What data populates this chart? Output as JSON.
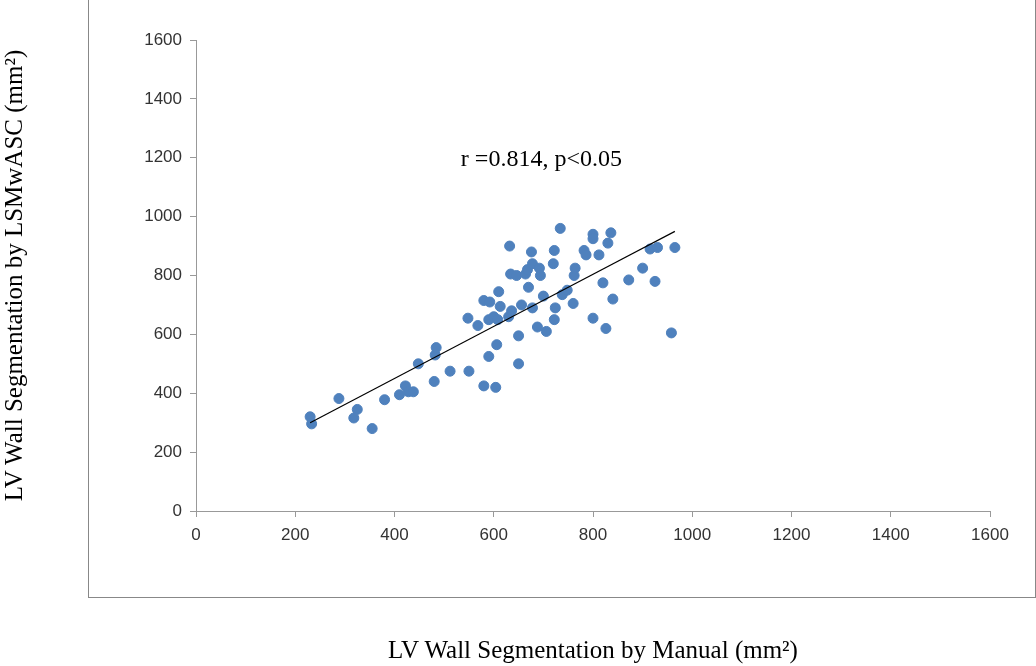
{
  "chart_data": {
    "type": "scatter",
    "xlabel": "LV Wall Segmentation by Manual (mm²)",
    "ylabel": "LV Wall Segmentation by LSMwASC (mm²)",
    "annotations": [
      "r =0.814, p<0.05"
    ],
    "xlim": [
      0,
      1600
    ],
    "xticks": [
      0,
      200,
      400,
      600,
      800,
      1000,
      1200,
      1400,
      1600
    ],
    "ylim": [
      0,
      1600
    ],
    "yticks": [
      0,
      200,
      400,
      600,
      800,
      1000,
      1200,
      1400,
      1600
    ],
    "grid": false,
    "legend": false,
    "marker": "circle",
    "series": [
      {
        "color": "#4f81bd",
        "x": [
          230,
          233,
          288,
          318,
          325,
          355,
          380,
          410,
          422,
          428,
          438,
          448,
          480,
          482,
          484,
          512,
          548,
          550,
          568,
          580,
          580,
          590,
          590,
          592,
          600,
          604,
          606,
          608,
          610,
          613,
          630,
          632,
          634,
          636,
          646,
          650,
          650,
          656,
          664,
          668,
          670,
          676,
          678,
          678,
          688,
          692,
          694,
          700,
          706,
          720,
          722,
          722,
          724,
          734,
          738,
          748,
          760,
          762,
          764,
          782,
          786,
          800,
          800,
          800,
          812,
          820,
          826,
          830,
          836,
          840,
          872,
          900,
          915,
          925,
          930,
          958,
          965
        ],
        "values": [
          320,
          296,
          382,
          316,
          345,
          280,
          378,
          395,
          425,
          405,
          405,
          500,
          440,
          530,
          555,
          475,
          655,
          475,
          630,
          425,
          715,
          525,
          650,
          710,
          660,
          420,
          565,
          650,
          745,
          695,
          660,
          900,
          805,
          680,
          800,
          595,
          500,
          700,
          805,
          820,
          760,
          880,
          690,
          840,
          625,
          825,
          800,
          730,
          610,
          840,
          885,
          650,
          690,
          960,
          735,
          750,
          705,
          800,
          825,
          885,
          870,
          940,
          925,
          655,
          870,
          775,
          620,
          910,
          945,
          720,
          785,
          825,
          890,
          780,
          895,
          605,
          895
        ]
      },
      {
        "type": "line",
        "color": "#000000",
        "marker": "none",
        "x": [
          230,
          965
        ],
        "values": [
          300,
          950
        ]
      }
    ]
  }
}
